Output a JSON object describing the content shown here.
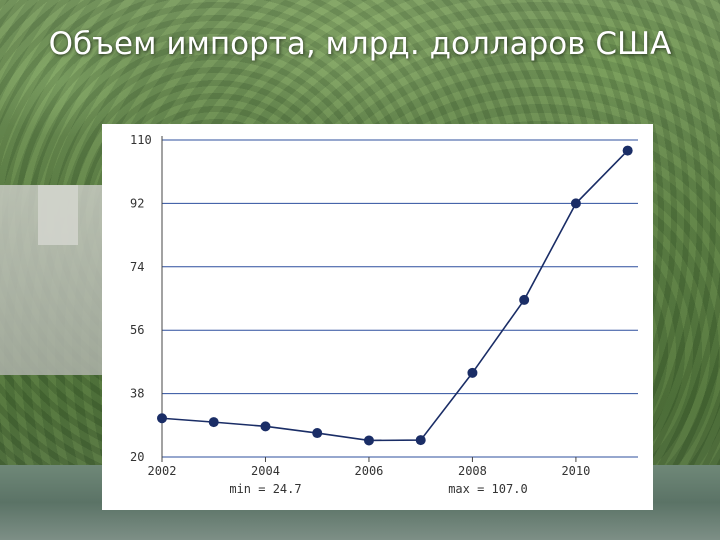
{
  "title": "Объем импорта, млрд. долларов США",
  "colors": {
    "line": "#1a2d66",
    "point": "#1a2d66",
    "grid": "#2d4f9e",
    "axis": "#444444"
  },
  "chart_data": {
    "type": "line",
    "title": "Объем импорта, млрд. долларов США",
    "xlabel": "",
    "ylabel": "",
    "x": [
      2002,
      2003,
      2004,
      2005,
      2006,
      2007,
      2008,
      2009,
      2010,
      2011
    ],
    "series": [
      {
        "values": [
          31.0,
          29.9,
          28.7,
          26.8,
          24.7,
          24.8,
          43.9,
          64.6,
          92.0,
          107.0
        ]
      }
    ],
    "xlim": [
      2002,
      2011.2
    ],
    "ylim": [
      20,
      110
    ],
    "x_ticks": [
      "2002",
      "2004",
      "2006",
      "2008",
      "2010"
    ],
    "y_ticks": [
      "20",
      "38",
      "56",
      "74",
      "92",
      "110"
    ],
    "grid": "horizontal",
    "legend": "none",
    "stats": {
      "min_label": "min = 24.7",
      "max_label": "max = 107.0"
    }
  }
}
